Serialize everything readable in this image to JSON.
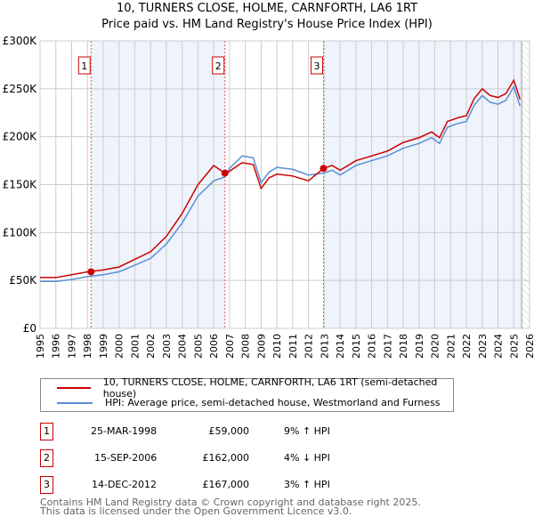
{
  "title": "10, TURNERS CLOSE, HOLME, CARNFORTH, LA6 1RT",
  "subtitle": "Price paid vs. HM Land Registry's House Price Index (HPI)",
  "chart_data": {
    "type": "line",
    "ylim": [
      0,
      300000
    ],
    "xlim": [
      1995,
      2026
    ],
    "yticks": [
      0,
      50000,
      100000,
      150000,
      200000,
      250000,
      300000
    ],
    "ytick_labels": [
      "£0",
      "£50K",
      "£100K",
      "£150K",
      "£200K",
      "£250K",
      "£300K"
    ],
    "xticks": [
      1995,
      1996,
      1997,
      1998,
      1999,
      2000,
      2001,
      2002,
      2003,
      2004,
      2005,
      2006,
      2007,
      2008,
      2009,
      2010,
      2011,
      2012,
      2013,
      2014,
      2015,
      2016,
      2017,
      2018,
      2019,
      2020,
      2021,
      2022,
      2023,
      2024,
      2025,
      2026
    ],
    "x": [
      1995,
      1996,
      1997,
      1998,
      1999,
      2000,
      2001,
      2002,
      2003,
      2004,
      2005,
      2006,
      2006.7,
      2007,
      2007.8,
      2008.5,
      2009,
      2009.5,
      2010,
      2011,
      2012,
      2012.95,
      2013.5,
      2014,
      2015,
      2016,
      2017,
      2018,
      2019,
      2019.8,
      2020.3,
      2020.8,
      2021.5,
      2022,
      2022.5,
      2023,
      2023.5,
      2024,
      2024.5,
      2025,
      2025.4
    ],
    "series": [
      {
        "name": "10, TURNERS CLOSE, HOLME, CARNFORTH, LA6 1RT (semi-detached house)",
        "color": "#cc0000",
        "values": [
          53,
          53,
          56,
          59,
          61,
          64,
          72,
          80,
          96,
          120,
          150,
          170,
          162,
          164,
          173,
          171,
          146,
          157,
          161,
          159,
          154,
          167,
          170,
          165,
          175,
          180,
          185,
          194,
          199,
          205,
          199,
          216,
          220,
          222,
          240,
          250,
          243,
          241,
          245,
          259,
          239
        ]
      },
      {
        "name": "HPI: Average price, semi-detached house, Westmorland and Furness",
        "color": "#5b8fd4",
        "values": [
          49,
          49,
          51,
          54,
          56,
          59,
          66,
          73,
          88,
          110,
          138,
          154,
          158,
          167,
          180,
          178,
          152,
          163,
          168,
          166,
          160,
          162,
          165,
          160,
          170,
          175,
          180,
          188,
          193,
          199,
          193,
          210,
          214,
          216,
          233,
          243,
          236,
          234,
          238,
          252,
          232
        ]
      }
    ],
    "value_unit": "thousands GBP",
    "sales": [
      {
        "n": "1",
        "x": 1998.23,
        "value": 59000,
        "date": "25-MAR-1998",
        "price": "£59,000",
        "hpi": "9% ↑ HPI"
      },
      {
        "n": "2",
        "x": 2006.71,
        "value": 162000,
        "date": "15-SEP-2006",
        "price": "£162,000",
        "hpi": "4% ↓ HPI"
      },
      {
        "n": "3",
        "x": 2012.95,
        "value": 167000,
        "date": "14-DEC-2012",
        "price": "£167,000",
        "hpi": "3% ↑ HPI"
      }
    ],
    "shaded_ranges": [
      [
        1998.23,
        2006.71
      ],
      [
        2012.95,
        2025.5
      ]
    ],
    "forecast_from": 2025.5
  },
  "footer": [
    "Contains HM Land Registry data © Crown copyright and database right 2025.",
    "This data is licensed under the Open Government Licence v3.0."
  ]
}
